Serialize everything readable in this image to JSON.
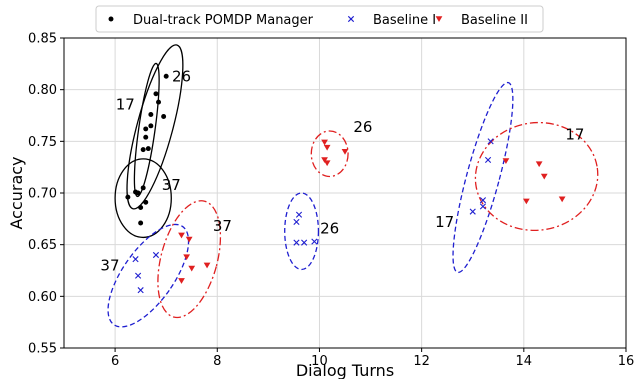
{
  "chart_data": {
    "type": "scatter",
    "title": "",
    "xlabel": "Dialog Turns",
    "ylabel": "Accuracy",
    "xlim": [
      5,
      16
    ],
    "ylim": [
      0.55,
      0.85
    ],
    "xticks": [
      6,
      8,
      10,
      12,
      14,
      16
    ],
    "yticks": [
      0.55,
      0.6,
      0.65,
      0.7,
      0.75,
      0.8,
      0.85
    ],
    "grid": true,
    "legend_position": "top",
    "series": [
      {
        "name": "Dual-track POMDP Manager",
        "marker": "circle",
        "color": "#000000",
        "points": [
          [
            6.4,
            0.701
          ],
          [
            6.55,
            0.705
          ],
          [
            6.5,
            0.686
          ],
          [
            6.6,
            0.691
          ],
          [
            6.25,
            0.696
          ],
          [
            6.5,
            0.671
          ],
          [
            6.45,
            0.7
          ],
          [
            6.55,
            0.742
          ],
          [
            6.6,
            0.754
          ],
          [
            6.7,
            0.765
          ],
          [
            6.85,
            0.788
          ],
          [
            7.0,
            0.813
          ],
          [
            6.95,
            0.774
          ],
          [
            6.6,
            0.762
          ],
          [
            6.65,
            0.743
          ],
          [
            6.7,
            0.776
          ],
          [
            6.8,
            0.796
          ]
        ]
      },
      {
        "name": "Baseline I",
        "marker": "x",
        "color": "#1f1fd0",
        "points": [
          [
            6.4,
            0.636
          ],
          [
            6.45,
            0.62
          ],
          [
            6.5,
            0.606
          ],
          [
            6.8,
            0.64
          ],
          [
            9.55,
            0.672
          ],
          [
            9.6,
            0.679
          ],
          [
            9.55,
            0.652
          ],
          [
            9.7,
            0.652
          ],
          [
            9.9,
            0.653
          ],
          [
            13.0,
            0.682
          ],
          [
            13.2,
            0.687
          ],
          [
            13.2,
            0.693
          ],
          [
            13.3,
            0.732
          ],
          [
            13.35,
            0.75
          ]
        ]
      },
      {
        "name": "Baseline II",
        "marker": "triangle-down",
        "color": "#e02020",
        "points": [
          [
            7.3,
            0.659
          ],
          [
            7.45,
            0.655
          ],
          [
            7.4,
            0.638
          ],
          [
            7.5,
            0.627
          ],
          [
            7.3,
            0.615
          ],
          [
            7.8,
            0.63
          ],
          [
            10.1,
            0.749
          ],
          [
            10.15,
            0.744
          ],
          [
            10.1,
            0.732
          ],
          [
            10.15,
            0.729
          ],
          [
            10.5,
            0.74
          ],
          [
            13.65,
            0.731
          ],
          [
            14.05,
            0.692
          ],
          [
            14.3,
            0.728
          ],
          [
            14.4,
            0.716
          ],
          [
            14.75,
            0.694
          ]
        ]
      }
    ],
    "ellipses": [
      {
        "series": "Dual-track POMDP Manager",
        "style": "solid",
        "color": "#000000",
        "cx": 6.78,
        "cy": 0.764,
        "rx": 0.35,
        "ry": 0.082,
        "angle_deg": 15
      },
      {
        "series": "Dual-track POMDP Manager",
        "style": "solid",
        "color": "#000000",
        "cx": 6.62,
        "cy": 0.761,
        "rx": 0.16,
        "ry": 0.065,
        "angle_deg": 8
      },
      {
        "series": "Dual-track POMDP Manager",
        "style": "solid",
        "color": "#000000",
        "cx": 6.55,
        "cy": 0.695,
        "rx": 0.55,
        "ry": 0.038,
        "angle_deg": 0
      },
      {
        "series": "Baseline I",
        "style": "dashed",
        "color": "#1f1fd0",
        "cx": 6.65,
        "cy": 0.62,
        "rx": 0.5,
        "ry": 0.058,
        "angle_deg": 35
      },
      {
        "series": "Baseline I",
        "style": "dashed",
        "color": "#1f1fd0",
        "cx": 9.65,
        "cy": 0.663,
        "rx": 0.33,
        "ry": 0.037,
        "angle_deg": 0
      },
      {
        "series": "Baseline I",
        "style": "dashed",
        "color": "#1f1fd0",
        "cx": 13.2,
        "cy": 0.715,
        "rx": 0.32,
        "ry": 0.095,
        "angle_deg": 15
      },
      {
        "series": "Baseline II",
        "style": "dashdot",
        "color": "#e02020",
        "cx": 7.45,
        "cy": 0.636,
        "rx": 0.55,
        "ry": 0.058,
        "angle_deg": 15
      },
      {
        "series": "Baseline II",
        "style": "dashdot",
        "color": "#e02020",
        "cx": 10.2,
        "cy": 0.738,
        "rx": 0.36,
        "ry": 0.022,
        "angle_deg": 0
      },
      {
        "series": "Baseline II",
        "style": "dashdot",
        "color": "#e02020",
        "cx": 14.25,
        "cy": 0.716,
        "rx": 1.2,
        "ry": 0.052,
        "angle_deg": -8
      }
    ],
    "annotations": [
      {
        "text": "26",
        "x": 7.3,
        "y": 0.808
      },
      {
        "text": "17",
        "x": 6.2,
        "y": 0.781
      },
      {
        "text": "37",
        "x": 7.1,
        "y": 0.703
      },
      {
        "text": "37",
        "x": 8.1,
        "y": 0.663
      },
      {
        "text": "37",
        "x": 5.9,
        "y": 0.625
      },
      {
        "text": "26",
        "x": 10.2,
        "y": 0.661
      },
      {
        "text": "26",
        "x": 10.85,
        "y": 0.759
      },
      {
        "text": "17",
        "x": 12.45,
        "y": 0.667
      },
      {
        "text": "17",
        "x": 15.0,
        "y": 0.752
      }
    ]
  }
}
